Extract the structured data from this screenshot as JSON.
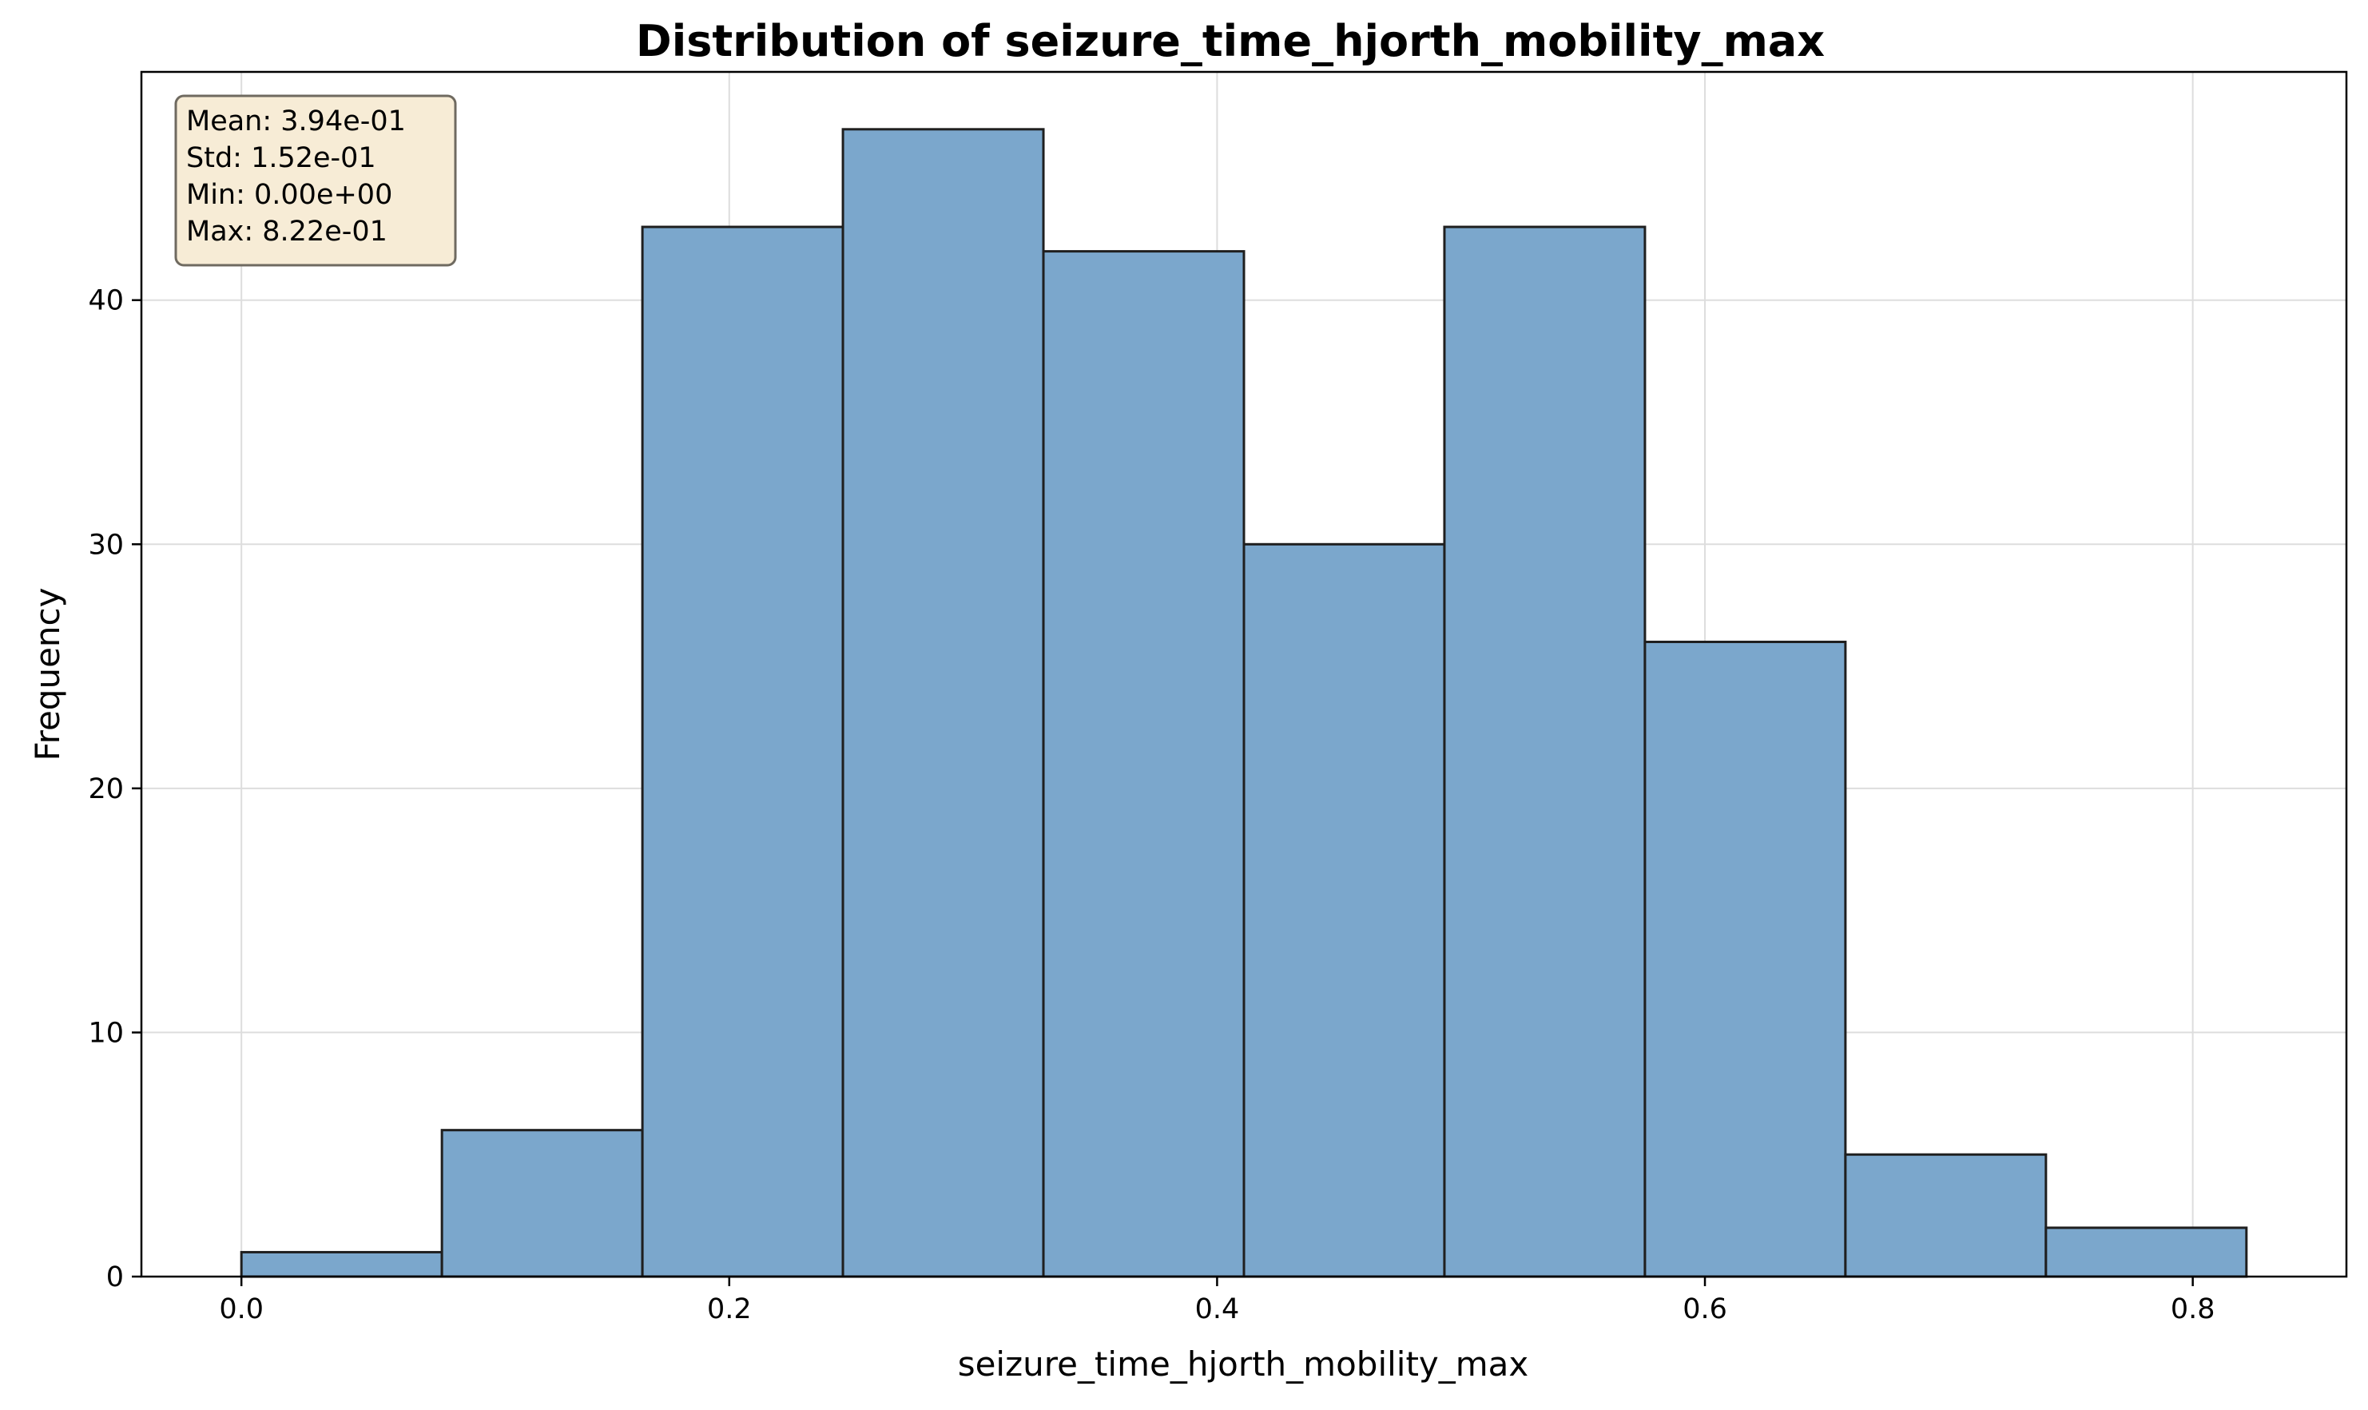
{
  "chart_data": {
    "type": "bar",
    "title": "Distribution of seizure_time_hjorth_mobility_max",
    "xlabel": "seizure_time_hjorth_mobility_max",
    "ylabel": "Frequency",
    "xlim": [
      -0.041,
      0.863
    ],
    "ylim": [
      0,
      49.35
    ],
    "bin_edges": [
      0.0,
      0.0822,
      0.1644,
      0.2466,
      0.3288,
      0.411,
      0.4932,
      0.5754,
      0.6576,
      0.7398,
      0.822
    ],
    "values": [
      1,
      6,
      43,
      47,
      42,
      30,
      43,
      26,
      5,
      2
    ],
    "x_ticks": [
      0.0,
      0.2,
      0.4,
      0.6,
      0.8
    ],
    "x_tick_labels": [
      "0.0",
      "0.2",
      "0.4",
      "0.6",
      "0.8"
    ],
    "y_ticks": [
      0,
      10,
      20,
      30,
      40
    ],
    "y_tick_labels": [
      "0",
      "10",
      "20",
      "30",
      "40"
    ],
    "grid": true,
    "colors": {
      "bar_fill": "#7ba7cc",
      "bar_edge": "#1f1f1f",
      "stats_box_fill": "#f7ecd6",
      "stats_box_edge": "#6f6a60",
      "grid": "#dddddd"
    },
    "stats_box": {
      "placement": "top-left",
      "lines": [
        "Mean: 3.94e-01",
        "Std: 1.52e-01",
        "Min: 0.00e+00",
        "Max: 8.22e-01"
      ]
    }
  }
}
